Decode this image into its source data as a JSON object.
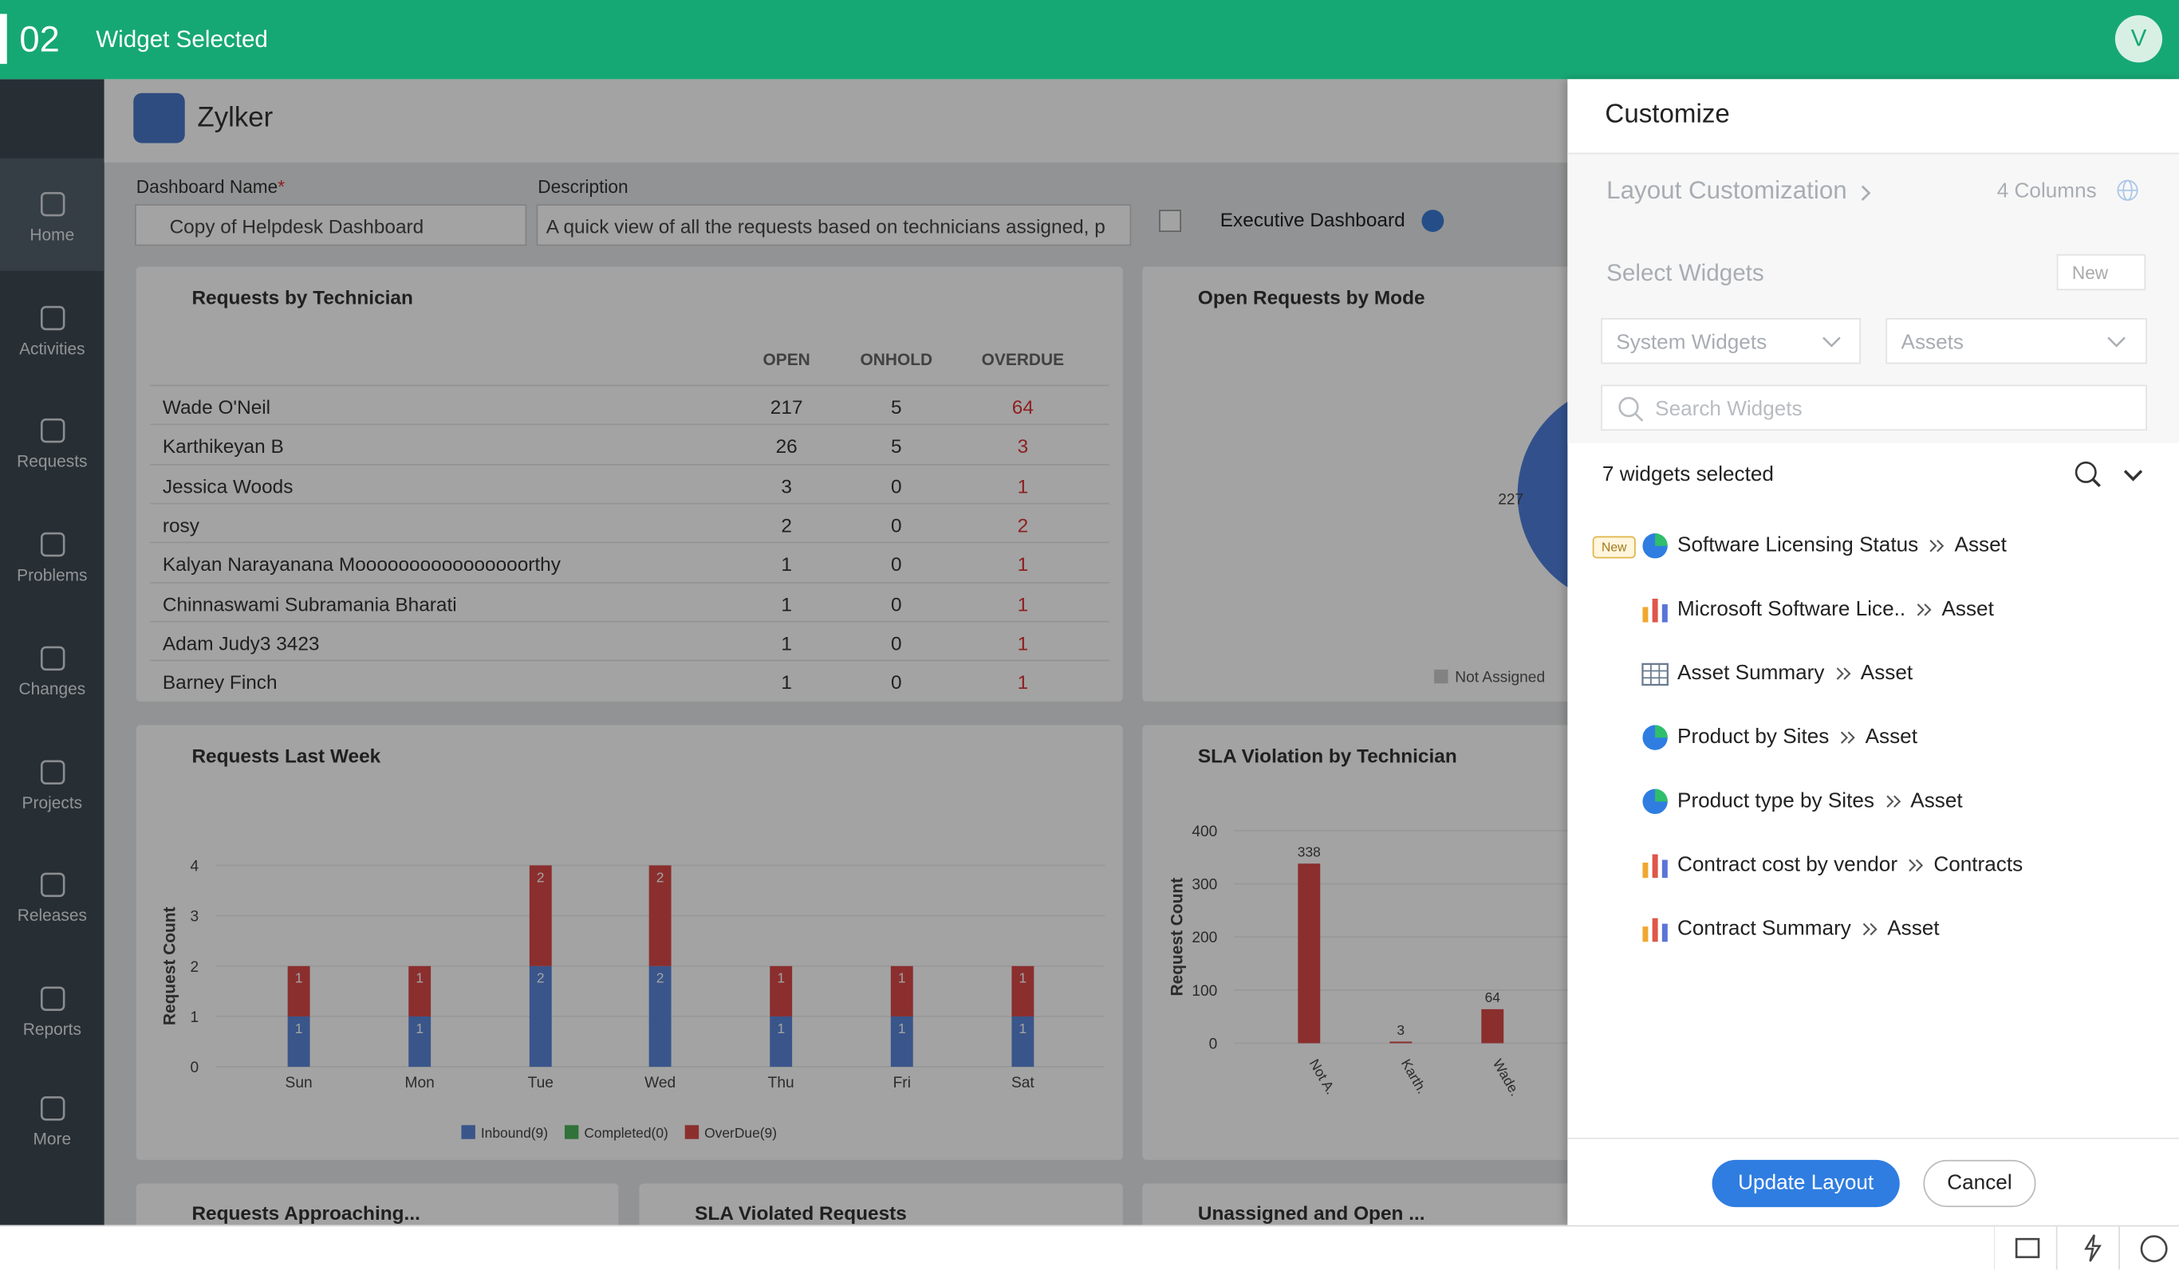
{
  "top_bar": {
    "step": "02",
    "title": "Widget Selected",
    "avatar": "V"
  },
  "sidebar": [
    {
      "label": "Home"
    },
    {
      "label": "Activities"
    },
    {
      "label": "Requests"
    },
    {
      "label": "Problems"
    },
    {
      "label": "Changes"
    },
    {
      "label": "Projects"
    },
    {
      "label": "Releases"
    },
    {
      "label": "Reports"
    },
    {
      "label": "More"
    }
  ],
  "header": {
    "org": "Zylker"
  },
  "form": {
    "name_label": "Dashboard Name",
    "required": "*",
    "name_value": "Copy of Helpdesk Dashboard",
    "description_label": "Description",
    "description_value": "A quick view of all the requests based on technicians assigned, p",
    "executive": "Executive Dashboard"
  },
  "widgets": {
    "technician": {
      "title": "Requests by Technician",
      "columns": [
        "OPEN",
        "ONHOLD",
        "OVERDUE"
      ],
      "rows": [
        [
          "Wade O'Neil",
          "217",
          "5",
          "64"
        ],
        [
          "Karthikeyan B",
          "26",
          "5",
          "3"
        ],
        [
          "Jessica Woods",
          "3",
          "0",
          "1"
        ],
        [
          "rosy",
          "2",
          "0",
          "2"
        ],
        [
          "Kalyan Narayanana Moooooooooooooooorthy",
          "1",
          "0",
          "1"
        ],
        [
          "Chinnaswami Subramania Bharati",
          "1",
          "0",
          "1"
        ],
        [
          "Adam Judy3 3423",
          "1",
          "0",
          "1"
        ],
        [
          "Barney Finch",
          "1",
          "0",
          "1"
        ]
      ]
    },
    "mode": {
      "title": "Open Requests by Mode",
      "type": "pie",
      "categories": [
        "Not Assigned"
      ],
      "values": [
        227
      ],
      "color": "#4f7fdc"
    },
    "last_week": {
      "title": "Requests Last Week",
      "type": "bar",
      "y_label": "Request Count",
      "categories": [
        "Sun",
        "Mon",
        "Tue",
        "Wed",
        "Thu",
        "Fri",
        "Sat"
      ],
      "series": [
        {
          "name": "Inbound(9)",
          "color": "#5a86d8",
          "values": [
            1,
            1,
            2,
            2,
            1,
            1,
            1
          ]
        },
        {
          "name": "Completed(0)",
          "color": "#4cb35a",
          "values": [
            0,
            0,
            0,
            0,
            0,
            0,
            0
          ]
        },
        {
          "name": "OverDue(9)",
          "color": "#d94848",
          "values": [
            1,
            1,
            2,
            2,
            1,
            1,
            1
          ]
        }
      ],
      "stacked": true,
      "ylim": [
        0,
        4
      ],
      "yticks": [
        0,
        1,
        2,
        3,
        4
      ],
      "grid": true
    },
    "sla": {
      "title": "SLA Violation by Technician",
      "type": "bar",
      "y_label": "Request Count",
      "categories": [
        "Not A.",
        "Karth.",
        "Wade."
      ],
      "values": [
        338,
        3,
        64
      ],
      "color": "#d94848",
      "ylim": [
        0,
        400
      ],
      "yticks": [
        0,
        100,
        200,
        300,
        400
      ],
      "grid": true
    },
    "approaching": {
      "title": "Requests Approaching..."
    },
    "sla_violated": {
      "title": "SLA Violated Requests"
    },
    "unassigned": {
      "title": "Unassigned and Open ..."
    }
  },
  "panel": {
    "title": "Customize",
    "layout": "Layout Customization",
    "columns": "4 Columns",
    "select": "Select Widgets",
    "new_button": "New",
    "system_widgets": "System Widgets",
    "assets": "Assets",
    "search": "Search Widgets",
    "selected": "7 widgets selected",
    "items": [
      {
        "badge": "New",
        "icon": "pie",
        "name": "Software Licensing Status",
        "module": "Asset"
      },
      {
        "icon": "bar",
        "name": "Microsoft Software Lice..",
        "module": "Asset"
      },
      {
        "icon": "table",
        "name": "Asset Summary",
        "module": "Asset"
      },
      {
        "icon": "pie",
        "name": "Product by Sites",
        "module": "Asset"
      },
      {
        "icon": "pie",
        "name": "Product type by Sites",
        "module": "Asset"
      },
      {
        "icon": "bar",
        "name": "Contract cost by vendor",
        "module": "Contracts"
      },
      {
        "icon": "bar",
        "name": "Contract Summary",
        "module": "Asset"
      }
    ],
    "update": "Update Layout",
    "cancel": "Cancel"
  }
}
